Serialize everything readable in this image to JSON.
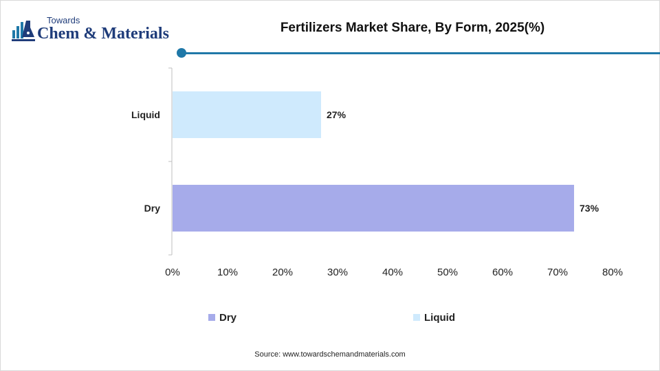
{
  "logo": {
    "line1": "Towards",
    "line2": "Chem & Materials"
  },
  "title": "Fertilizers Market Share, By Form, 2025(%)",
  "colors": {
    "accent": "#1f78a8",
    "dry": "#a6abea",
    "liquid": "#cfeafd"
  },
  "chart_data": {
    "type": "bar",
    "orientation": "horizontal",
    "title": "Fertilizers Market Share, By Form, 2025(%)",
    "categories": [
      "Liquid",
      "Dry"
    ],
    "values": [
      27,
      73
    ],
    "data_labels": [
      "27%",
      "73%"
    ],
    "xlim": [
      0,
      80
    ],
    "x_ticks": [
      "0%",
      "10%",
      "20%",
      "30%",
      "40%",
      "50%",
      "60%",
      "70%",
      "80%"
    ],
    "grid": false,
    "legend": [
      "Dry",
      "Liquid"
    ],
    "legend_position": "bottom"
  },
  "legend": {
    "dry_label": "Dry",
    "liquid_label": "Liquid"
  },
  "source": "Source: www.towardschemandmaterials.com"
}
